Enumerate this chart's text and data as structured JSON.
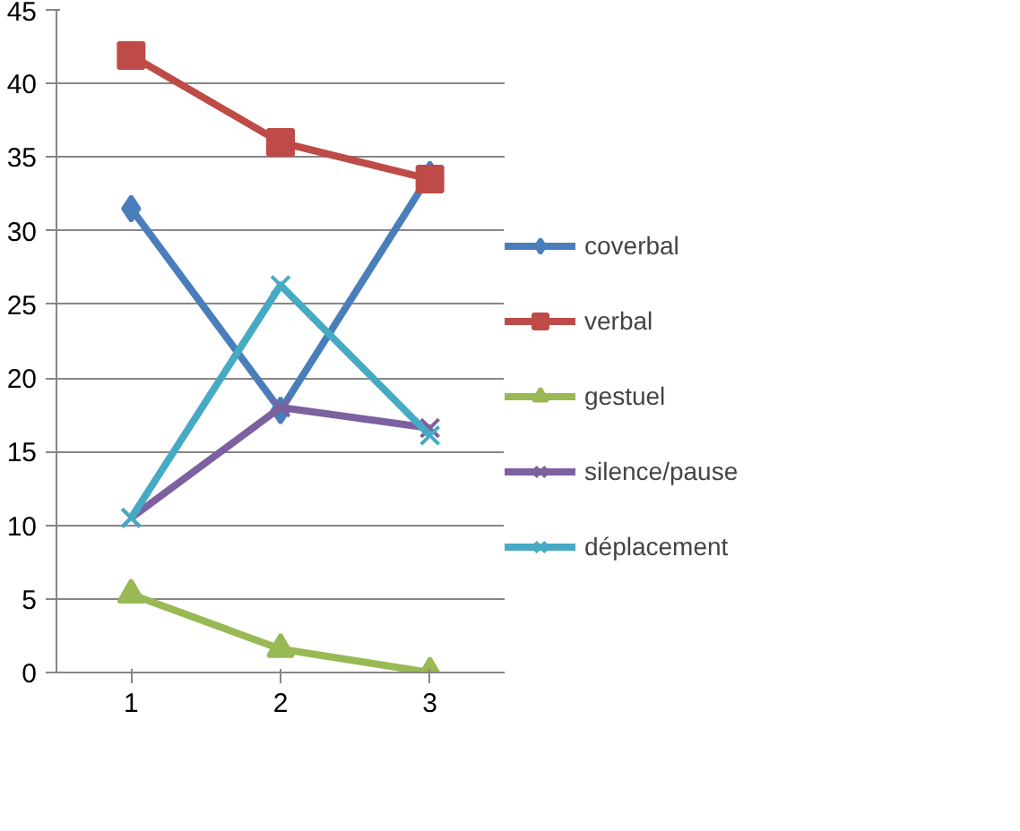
{
  "chart_data": {
    "type": "line",
    "categories": [
      "1",
      "2",
      "3"
    ],
    "series": [
      {
        "name": "coverbal",
        "color": "#4a7ebb",
        "marker": "diamond",
        "values": [
          31.5,
          17.8,
          33.8
        ]
      },
      {
        "name": "verbal",
        "color": "#be4b48",
        "marker": "square",
        "values": [
          41.9,
          36.0,
          33.5
        ]
      },
      {
        "name": "gestuel",
        "color": "#98b954",
        "marker": "triangle",
        "values": [
          5.3,
          1.6,
          0
        ]
      },
      {
        "name": "silence/pause",
        "color": "#7d60a0",
        "marker": "cross",
        "values": [
          10.5,
          18.0,
          16.6
        ]
      },
      {
        "name": "déplacement",
        "color": "#46aac5",
        "marker": "cross",
        "values": [
          10.5,
          26.3,
          16.1
        ]
      }
    ],
    "ylim": [
      0,
      45
    ],
    "yticks": [
      0,
      5,
      10,
      15,
      20,
      25,
      30,
      35,
      40,
      45
    ],
    "grid": "y",
    "legend": "right",
    "line_style": "solid"
  }
}
